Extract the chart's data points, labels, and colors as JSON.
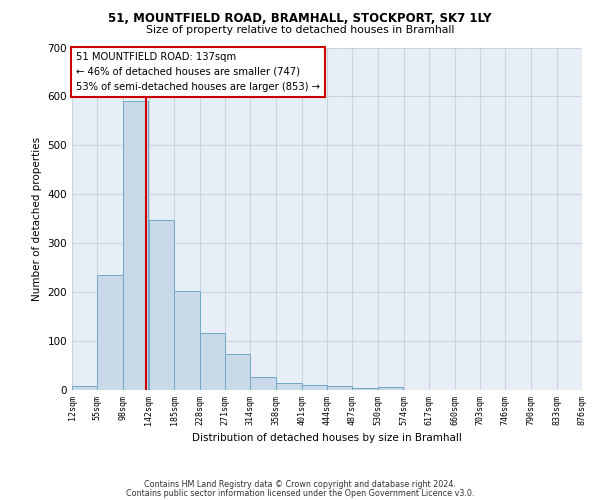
{
  "title1": "51, MOUNTFIELD ROAD, BRAMHALL, STOCKPORT, SK7 1LY",
  "title2": "Size of property relative to detached houses in Bramhall",
  "xlabel": "Distribution of detached houses by size in Bramhall",
  "ylabel": "Number of detached properties",
  "footnote1": "Contains HM Land Registry data © Crown copyright and database right 2024.",
  "footnote2": "Contains public sector information licensed under the Open Government Licence v3.0.",
  "bin_edges": [
    12,
    55,
    98,
    142,
    185,
    228,
    271,
    314,
    358,
    401,
    444,
    487,
    530,
    574,
    617,
    660,
    703,
    746,
    790,
    833,
    876
  ],
  "bar_heights": [
    8,
    235,
    590,
    347,
    203,
    117,
    74,
    27,
    15,
    10,
    8,
    5,
    7,
    0,
    0,
    0,
    0,
    0,
    0,
    0
  ],
  "bar_color": "#c9d9e8",
  "bar_edge_color": "#6fa8c8",
  "grid_color": "#c8d4e0",
  "background_color": "#e8eef5",
  "vline_x": 137,
  "vline_color": "#cc0000",
  "annotation_text": "51 MOUNTFIELD ROAD: 137sqm\n← 46% of detached houses are smaller (747)\n53% of semi-detached houses are larger (853) →",
  "annotation_box_color": "white",
  "annotation_box_edge": "#cc0000",
  "ylim": [
    0,
    700
  ],
  "yticks": [
    0,
    100,
    200,
    300,
    400,
    500,
    600,
    700
  ]
}
